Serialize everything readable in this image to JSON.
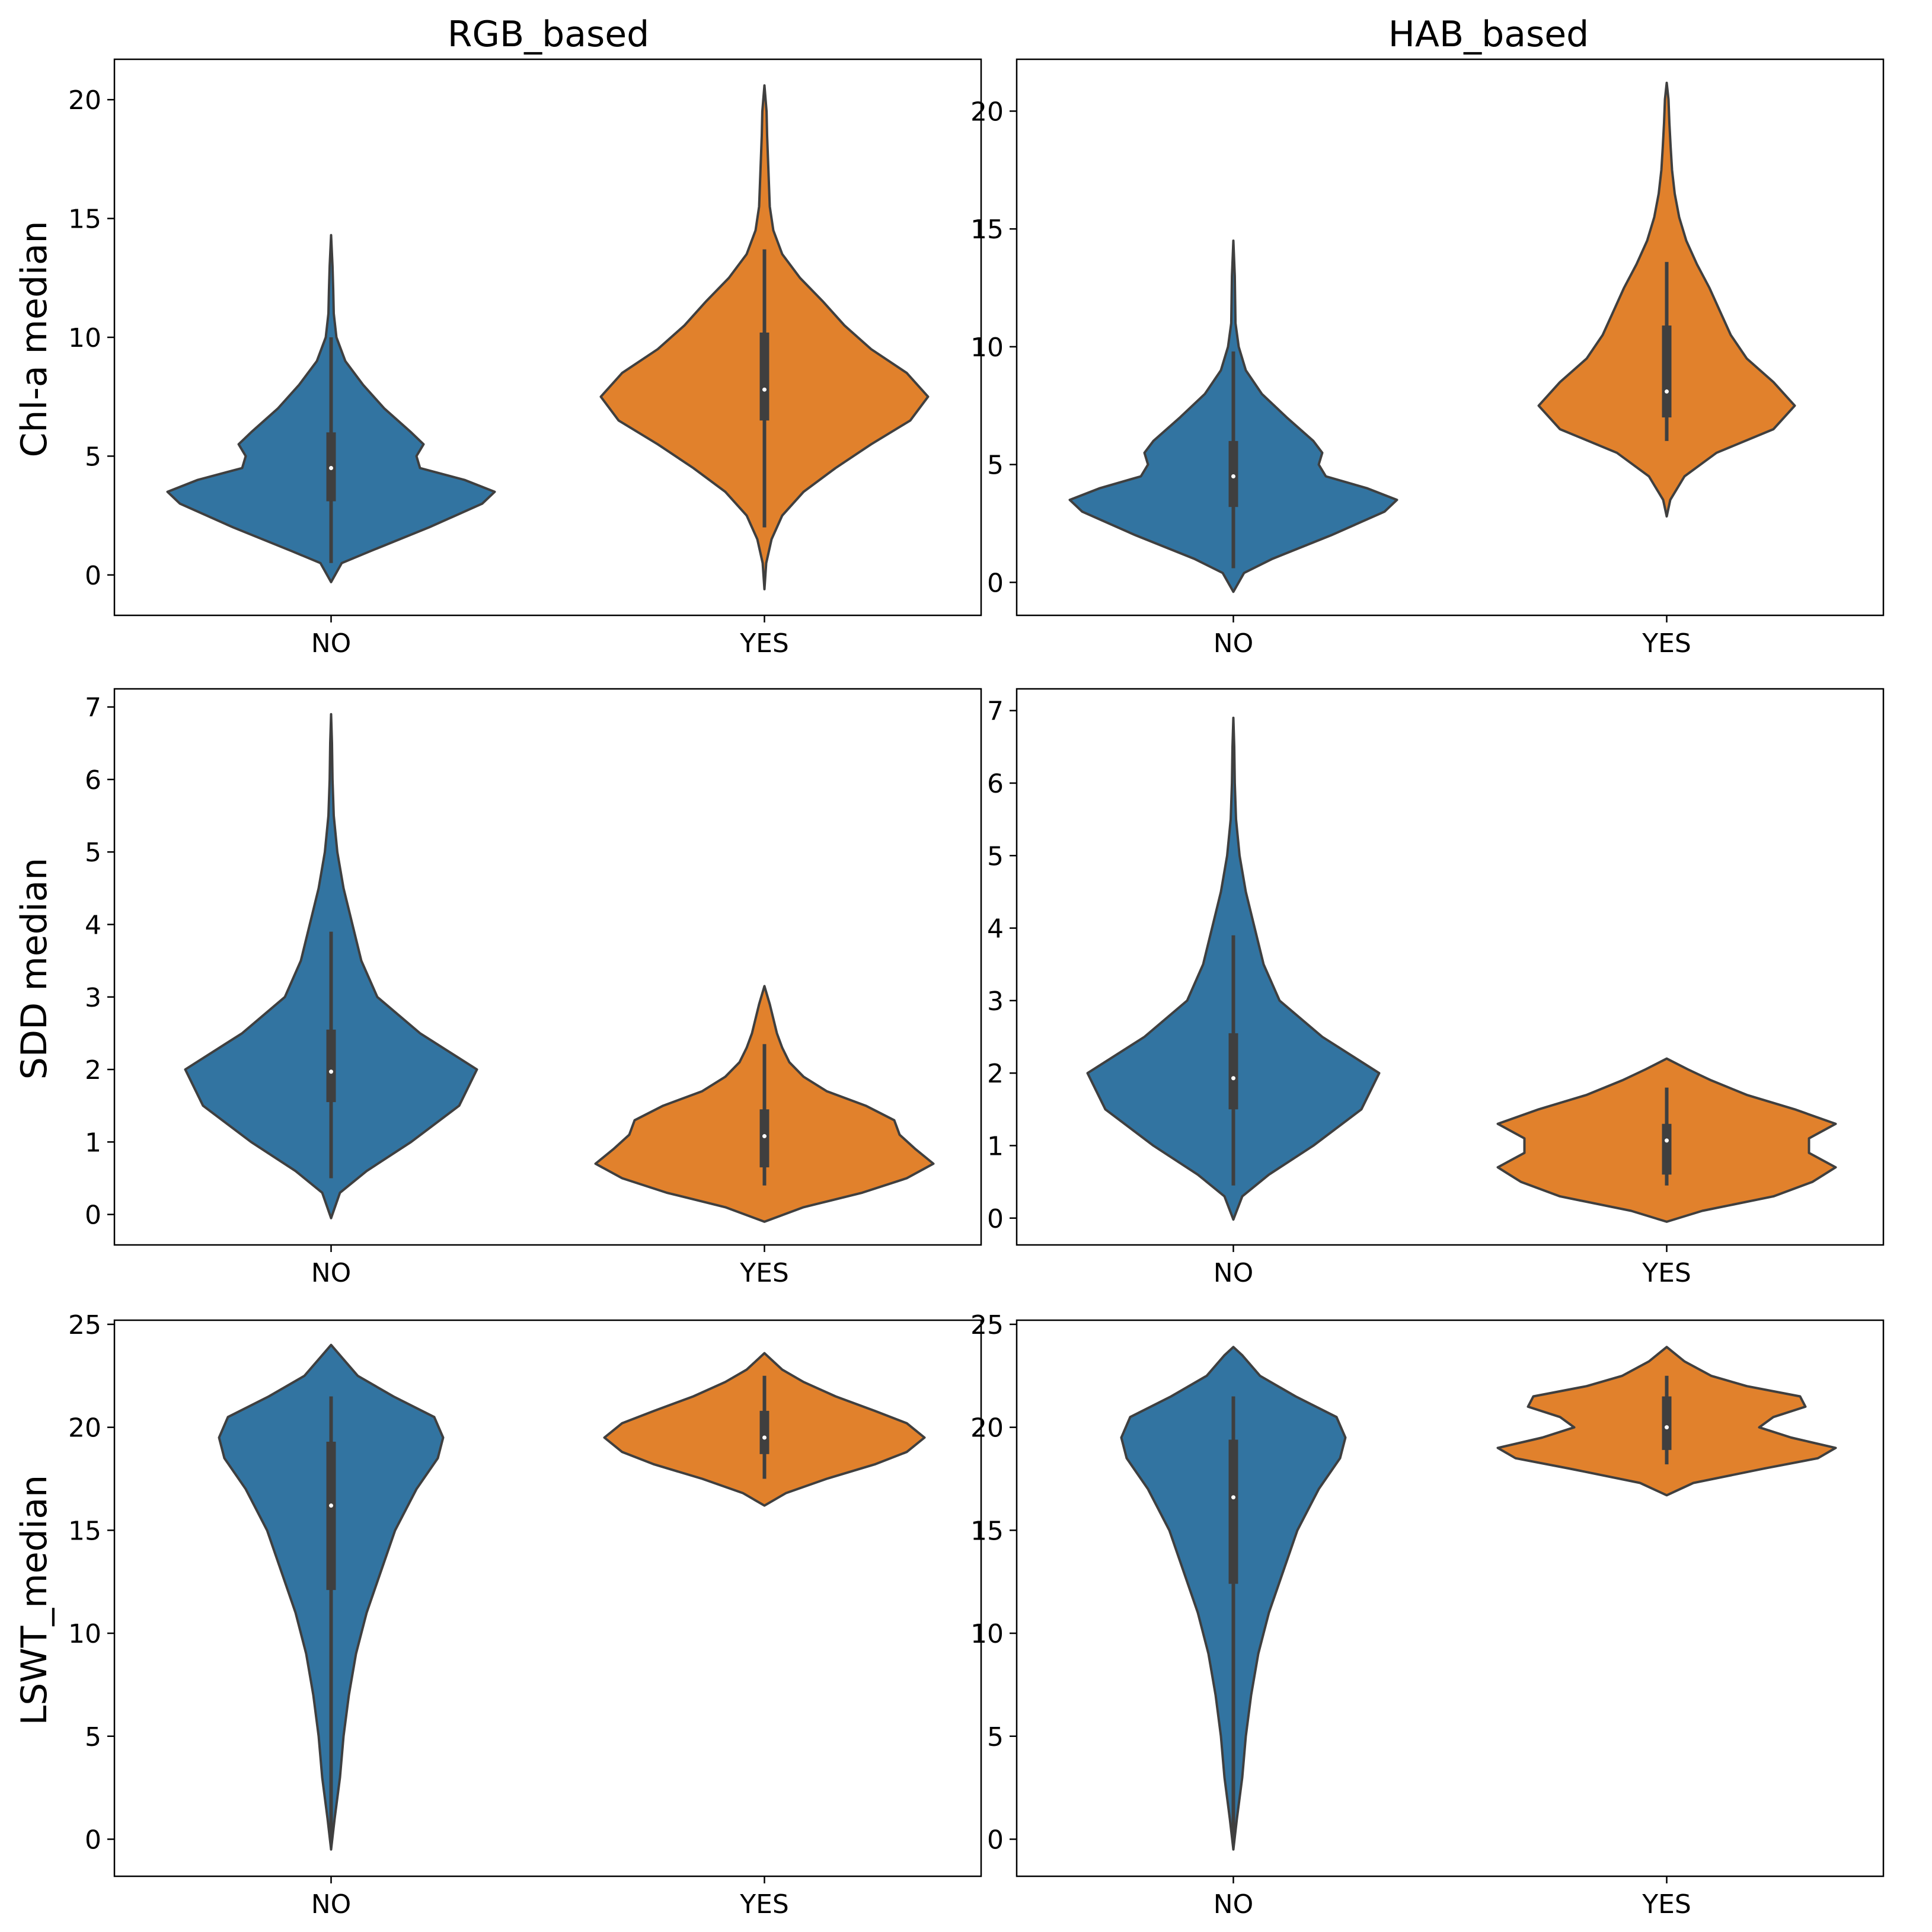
{
  "figure": {
    "columns": [
      "RGB_based",
      "HAB_based"
    ],
    "rows": [
      "Chl-a median",
      "SDD median",
      "LSWT_median"
    ],
    "categories": [
      "NO",
      "YES"
    ]
  },
  "colors": {
    "NO": "#3274a1",
    "YES": "#e1812c",
    "inner_box": "#3f3f3f",
    "median": "#ffffff"
  },
  "chart_data": [
    {
      "type": "violin",
      "title": "RGB_based",
      "ylabel": "Chl-a median",
      "categories": [
        "NO",
        "YES"
      ],
      "ylim": [
        -1.7,
        21.7
      ],
      "yticks": [
        0,
        5,
        10,
        15,
        20
      ],
      "violins": [
        {
          "category": "NO",
          "min": -0.3,
          "max": 14.3,
          "q1": 3.1,
          "median": 4.5,
          "q3": 6.0,
          "whisker_low": 0.5,
          "whisker_high": 10.0,
          "profile": [
            [
              -0.3,
              0.0
            ],
            [
              0.5,
              0.06
            ],
            [
              1.0,
              0.22
            ],
            [
              2.0,
              0.55
            ],
            [
              3.0,
              0.85
            ],
            [
              3.5,
              0.92
            ],
            [
              4.0,
              0.75
            ],
            [
              4.5,
              0.5
            ],
            [
              5.0,
              0.48
            ],
            [
              5.5,
              0.52
            ],
            [
              6.0,
              0.45
            ],
            [
              7.0,
              0.3
            ],
            [
              8.0,
              0.18
            ],
            [
              9.0,
              0.08
            ],
            [
              10.0,
              0.03
            ],
            [
              11.0,
              0.015
            ],
            [
              12.0,
              0.012
            ],
            [
              13.0,
              0.008
            ],
            [
              14.3,
              0.0
            ]
          ]
        },
        {
          "category": "YES",
          "min": -0.6,
          "max": 20.6,
          "q1": 6.5,
          "median": 7.8,
          "q3": 10.2,
          "whisker_low": 2.0,
          "whisker_high": 13.7,
          "profile": [
            [
              -0.6,
              0.0
            ],
            [
              0.5,
              0.01
            ],
            [
              1.5,
              0.04
            ],
            [
              2.5,
              0.1
            ],
            [
              3.5,
              0.22
            ],
            [
              4.5,
              0.4
            ],
            [
              5.5,
              0.6
            ],
            [
              6.5,
              0.82
            ],
            [
              7.5,
              0.92
            ],
            [
              8.5,
              0.8
            ],
            [
              9.5,
              0.6
            ],
            [
              10.5,
              0.45
            ],
            [
              11.5,
              0.33
            ],
            [
              12.5,
              0.2
            ],
            [
              13.5,
              0.1
            ],
            [
              14.5,
              0.05
            ],
            [
              15.5,
              0.03
            ],
            [
              16.5,
              0.025
            ],
            [
              17.5,
              0.02
            ],
            [
              18.5,
              0.015
            ],
            [
              19.5,
              0.012
            ],
            [
              20.6,
              0.0
            ]
          ]
        }
      ]
    },
    {
      "type": "violin",
      "title": "HAB_based",
      "ylabel": "Chl-a median",
      "categories": [
        "NO",
        "YES"
      ],
      "ylim": [
        -1.4,
        22.2
      ],
      "yticks": [
        0,
        5,
        10,
        15,
        20
      ],
      "violins": [
        {
          "category": "NO",
          "min": -0.4,
          "max": 14.5,
          "q1": 3.2,
          "median": 4.5,
          "q3": 6.0,
          "whisker_low": 0.6,
          "whisker_high": 9.8,
          "profile": [
            [
              -0.4,
              0.0
            ],
            [
              0.4,
              0.06
            ],
            [
              1.0,
              0.22
            ],
            [
              2.0,
              0.55
            ],
            [
              3.0,
              0.85
            ],
            [
              3.5,
              0.92
            ],
            [
              4.0,
              0.75
            ],
            [
              4.5,
              0.52
            ],
            [
              5.0,
              0.48
            ],
            [
              5.5,
              0.5
            ],
            [
              6.0,
              0.45
            ],
            [
              7.0,
              0.3
            ],
            [
              8.0,
              0.16
            ],
            [
              9.0,
              0.07
            ],
            [
              10.0,
              0.03
            ],
            [
              11.0,
              0.012
            ],
            [
              12.0,
              0.01
            ],
            [
              13.0,
              0.008
            ],
            [
              14.5,
              0.0
            ]
          ]
        },
        {
          "category": "YES",
          "min": 2.8,
          "max": 21.2,
          "q1": 7.0,
          "median": 8.1,
          "q3": 10.9,
          "whisker_low": 6.0,
          "whisker_high": 13.6,
          "profile": [
            [
              2.8,
              0.0
            ],
            [
              3.5,
              0.02
            ],
            [
              4.5,
              0.1
            ],
            [
              5.5,
              0.28
            ],
            [
              6.5,
              0.6
            ],
            [
              7.5,
              0.72
            ],
            [
              8.5,
              0.6
            ],
            [
              9.5,
              0.45
            ],
            [
              10.5,
              0.36
            ],
            [
              11.5,
              0.3
            ],
            [
              12.5,
              0.24
            ],
            [
              13.5,
              0.17
            ],
            [
              14.5,
              0.11
            ],
            [
              15.5,
              0.07
            ],
            [
              16.5,
              0.045
            ],
            [
              17.5,
              0.03
            ],
            [
              18.5,
              0.022
            ],
            [
              19.5,
              0.015
            ],
            [
              20.5,
              0.01
            ],
            [
              21.2,
              0.0
            ]
          ]
        }
      ]
    },
    {
      "type": "violin",
      "title": "RGB_based",
      "ylabel": "SDD median",
      "categories": [
        "NO",
        "YES"
      ],
      "ylim": [
        -0.42,
        7.25
      ],
      "yticks": [
        0,
        1,
        2,
        3,
        4,
        5,
        6,
        7
      ],
      "violins": [
        {
          "category": "NO",
          "min": -0.05,
          "max": 6.9,
          "q1": 1.55,
          "median": 1.97,
          "q3": 2.55,
          "whisker_low": 0.5,
          "whisker_high": 3.9,
          "profile": [
            [
              -0.05,
              0.0
            ],
            [
              0.3,
              0.05
            ],
            [
              0.6,
              0.2
            ],
            [
              1.0,
              0.45
            ],
            [
              1.5,
              0.72
            ],
            [
              2.0,
              0.82
            ],
            [
              2.5,
              0.5
            ],
            [
              3.0,
              0.26
            ],
            [
              3.5,
              0.17
            ],
            [
              4.0,
              0.12
            ],
            [
              4.5,
              0.07
            ],
            [
              5.0,
              0.035
            ],
            [
              5.5,
              0.015
            ],
            [
              6.0,
              0.008
            ],
            [
              6.5,
              0.005
            ],
            [
              6.9,
              0.0
            ]
          ]
        },
        {
          "category": "YES",
          "min": -0.1,
          "max": 3.15,
          "q1": 0.65,
          "median": 1.08,
          "q3": 1.45,
          "whisker_low": 0.4,
          "whisker_high": 2.35,
          "profile": [
            [
              -0.1,
              0.0
            ],
            [
              0.1,
              0.22
            ],
            [
              0.3,
              0.55
            ],
            [
              0.5,
              0.8
            ],
            [
              0.7,
              0.95
            ],
            [
              0.9,
              0.85
            ],
            [
              1.1,
              0.76
            ],
            [
              1.3,
              0.73
            ],
            [
              1.5,
              0.57
            ],
            [
              1.7,
              0.35
            ],
            [
              1.9,
              0.22
            ],
            [
              2.1,
              0.14
            ],
            [
              2.3,
              0.1
            ],
            [
              2.5,
              0.07
            ],
            [
              2.7,
              0.05
            ],
            [
              2.9,
              0.03
            ],
            [
              3.15,
              0.0
            ]
          ]
        }
      ]
    },
    {
      "type": "violin",
      "title": "HAB_based",
      "ylabel": "SDD median",
      "categories": [
        "NO",
        "YES"
      ],
      "ylim": [
        -0.37,
        7.3
      ],
      "yticks": [
        0,
        1,
        2,
        3,
        4,
        5,
        6,
        7
      ],
      "violins": [
        {
          "category": "NO",
          "min": -0.02,
          "max": 6.9,
          "q1": 1.5,
          "median": 1.93,
          "q3": 2.55,
          "whisker_low": 0.45,
          "whisker_high": 3.9,
          "profile": [
            [
              -0.02,
              0.0
            ],
            [
              0.3,
              0.05
            ],
            [
              0.6,
              0.2
            ],
            [
              1.0,
              0.45
            ],
            [
              1.5,
              0.72
            ],
            [
              2.0,
              0.82
            ],
            [
              2.5,
              0.5
            ],
            [
              3.0,
              0.26
            ],
            [
              3.5,
              0.17
            ],
            [
              4.0,
              0.12
            ],
            [
              4.5,
              0.07
            ],
            [
              5.0,
              0.035
            ],
            [
              5.5,
              0.015
            ],
            [
              6.0,
              0.008
            ],
            [
              6.5,
              0.005
            ],
            [
              6.9,
              0.0
            ]
          ]
        },
        {
          "category": "YES",
          "min": -0.05,
          "max": 2.2,
          "q1": 0.6,
          "median": 1.07,
          "q3": 1.3,
          "whisker_low": 0.45,
          "whisker_high": 1.8,
          "profile": [
            [
              -0.05,
              0.0
            ],
            [
              0.1,
              0.2
            ],
            [
              0.3,
              0.6
            ],
            [
              0.5,
              0.82
            ],
            [
              0.7,
              0.95
            ],
            [
              0.9,
              0.8
            ],
            [
              1.1,
              0.8
            ],
            [
              1.3,
              0.95
            ],
            [
              1.5,
              0.72
            ],
            [
              1.7,
              0.45
            ],
            [
              1.9,
              0.25
            ],
            [
              2.05,
              0.12
            ],
            [
              2.2,
              0.0
            ]
          ]
        }
      ]
    },
    {
      "type": "violin",
      "title": "RGB_based",
      "ylabel": "LSWT_median",
      "categories": [
        "NO",
        "YES"
      ],
      "ylim": [
        -1.8,
        25.2
      ],
      "yticks": [
        0,
        5,
        10,
        15,
        20,
        25
      ],
      "violins": [
        {
          "category": "NO",
          "min": -0.5,
          "max": 24.0,
          "q1": 12.1,
          "median": 16.2,
          "q3": 19.3,
          "whisker_low": 0.0,
          "whisker_high": 21.5,
          "profile": [
            [
              -0.5,
              0.0
            ],
            [
              1.0,
              0.02
            ],
            [
              3.0,
              0.05
            ],
            [
              5.0,
              0.07
            ],
            [
              7.0,
              0.1
            ],
            [
              9.0,
              0.14
            ],
            [
              11.0,
              0.2
            ],
            [
              13.0,
              0.28
            ],
            [
              15.0,
              0.36
            ],
            [
              17.0,
              0.48
            ],
            [
              18.5,
              0.6
            ],
            [
              19.5,
              0.63
            ],
            [
              20.5,
              0.58
            ],
            [
              21.5,
              0.35
            ],
            [
              22.5,
              0.15
            ],
            [
              23.5,
              0.05
            ],
            [
              24.0,
              0.0
            ]
          ]
        },
        {
          "category": "YES",
          "min": 16.2,
          "max": 23.6,
          "q1": 18.7,
          "median": 19.5,
          "q3": 20.8,
          "whisker_low": 17.5,
          "whisker_high": 22.5,
          "profile": [
            [
              16.2,
              0.0
            ],
            [
              16.8,
              0.12
            ],
            [
              17.5,
              0.35
            ],
            [
              18.2,
              0.62
            ],
            [
              18.8,
              0.8
            ],
            [
              19.5,
              0.9
            ],
            [
              20.2,
              0.8
            ],
            [
              20.8,
              0.62
            ],
            [
              21.5,
              0.4
            ],
            [
              22.2,
              0.22
            ],
            [
              22.8,
              0.1
            ],
            [
              23.6,
              0.0
            ]
          ]
        }
      ]
    },
    {
      "type": "violin",
      "title": "HAB_based",
      "ylabel": "LSWT_median",
      "categories": [
        "NO",
        "YES"
      ],
      "ylim": [
        -1.8,
        25.2
      ],
      "yticks": [
        0,
        5,
        10,
        15,
        20,
        25
      ],
      "violins": [
        {
          "category": "NO",
          "min": -0.5,
          "max": 23.9,
          "q1": 12.4,
          "median": 16.6,
          "q3": 19.4,
          "whisker_low": 0.0,
          "whisker_high": 21.5,
          "profile": [
            [
              -0.5,
              0.0
            ],
            [
              1.0,
              0.02
            ],
            [
              3.0,
              0.05
            ],
            [
              5.0,
              0.07
            ],
            [
              7.0,
              0.1
            ],
            [
              9.0,
              0.14
            ],
            [
              11.0,
              0.2
            ],
            [
              13.0,
              0.28
            ],
            [
              15.0,
              0.36
            ],
            [
              17.0,
              0.48
            ],
            [
              18.5,
              0.6
            ],
            [
              19.5,
              0.63
            ],
            [
              20.5,
              0.58
            ],
            [
              21.5,
              0.35
            ],
            [
              22.5,
              0.15
            ],
            [
              23.5,
              0.05
            ],
            [
              23.9,
              0.0
            ]
          ]
        },
        {
          "category": "YES",
          "min": 16.7,
          "max": 23.9,
          "q1": 18.9,
          "median": 20.0,
          "q3": 21.5,
          "whisker_low": 18.2,
          "whisker_high": 22.5,
          "profile": [
            [
              16.7,
              0.0
            ],
            [
              17.3,
              0.15
            ],
            [
              18.0,
              0.55
            ],
            [
              18.5,
              0.85
            ],
            [
              19.0,
              0.95
            ],
            [
              19.5,
              0.7
            ],
            [
              20.0,
              0.52
            ],
            [
              20.5,
              0.6
            ],
            [
              21.0,
              0.78
            ],
            [
              21.5,
              0.75
            ],
            [
              22.0,
              0.45
            ],
            [
              22.5,
              0.25
            ],
            [
              23.2,
              0.1
            ],
            [
              23.9,
              0.0
            ]
          ]
        }
      ]
    }
  ]
}
